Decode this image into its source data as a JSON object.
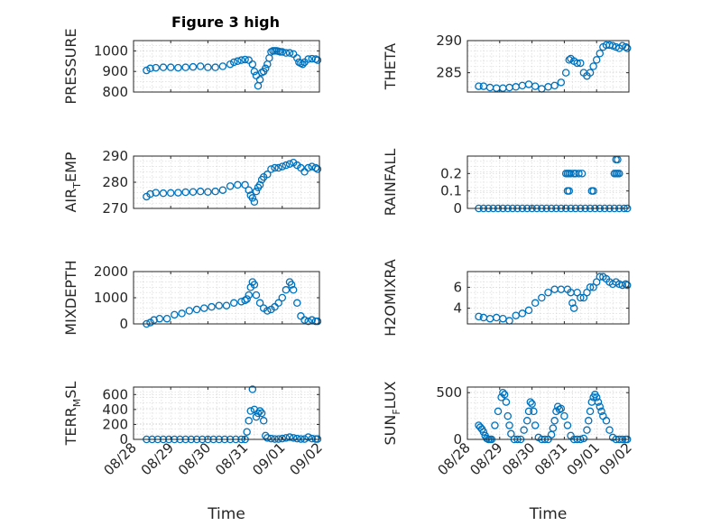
{
  "title": "Figure 3 high",
  "colors": {
    "series": "#0072BD",
    "axis": "#262626",
    "grid": "#d4d4d4"
  },
  "chart_data": [
    {
      "type": "scatter",
      "id": "pressure",
      "ylabel": {
        "main": "PRESSURE",
        "sub": ""
      },
      "ylim": [
        800,
        1050
      ],
      "yticks": [
        800,
        900,
        1000
      ],
      "ytick_labels": [
        "800",
        "900",
        "1000"
      ],
      "xlim": [
        0,
        5
      ],
      "xticks": [
        0,
        1,
        2,
        3,
        4,
        5
      ],
      "x_tick_labels": [
        "08/28",
        "08/29",
        "08/30",
        "08/31",
        "09/01",
        "09/02"
      ],
      "show_xtick_labels": false,
      "grid": true,
      "x": [
        0.35,
        0.45,
        0.6,
        0.8,
        1.0,
        1.2,
        1.4,
        1.6,
        1.8,
        2.0,
        2.2,
        2.4,
        2.6,
        2.7,
        2.8,
        2.9,
        3.0,
        3.1,
        3.2,
        3.25,
        3.3,
        3.35,
        3.4,
        3.45,
        3.5,
        3.55,
        3.6,
        3.65,
        3.7,
        3.75,
        3.8,
        3.85,
        3.9,
        3.95,
        4.0,
        4.1,
        4.2,
        4.3,
        4.4,
        4.45,
        4.5,
        4.55,
        4.6,
        4.7,
        4.8,
        4.9,
        4.95
      ],
      "y": [
        905,
        915,
        918,
        920,
        920,
        918,
        920,
        922,
        925,
        920,
        920,
        925,
        935,
        945,
        950,
        955,
        958,
        955,
        935,
        900,
        880,
        830,
        860,
        895,
        900,
        915,
        935,
        965,
        995,
        1000,
        1000,
        1000,
        998,
        995,
        995,
        990,
        990,
        985,
        965,
        945,
        940,
        935,
        945,
        960,
        962,
        960,
        955
      ]
    },
    {
      "type": "scatter",
      "id": "theta",
      "ylabel": {
        "main": "THETA",
        "sub": ""
      },
      "ylim": [
        282,
        290
      ],
      "yticks": [
        285,
        290
      ],
      "ytick_labels": [
        "285",
        "290"
      ],
      "xlim": [
        0,
        5
      ],
      "xticks": [
        0,
        1,
        2,
        3,
        4,
        5
      ],
      "x_tick_labels": [
        "08/28",
        "08/29",
        "08/30",
        "08/31",
        "09/01",
        "09/02"
      ],
      "show_xtick_labels": false,
      "grid": true,
      "x": [
        0.35,
        0.5,
        0.7,
        0.9,
        1.1,
        1.3,
        1.5,
        1.7,
        1.9,
        2.1,
        2.3,
        2.5,
        2.7,
        2.9,
        3.05,
        3.15,
        3.2,
        3.3,
        3.4,
        3.5,
        3.6,
        3.7,
        3.8,
        3.9,
        4.0,
        4.1,
        4.2,
        4.3,
        4.4,
        4.5,
        4.6,
        4.7,
        4.8,
        4.9,
        4.95
      ],
      "y": [
        282.9,
        282.9,
        282.7,
        282.6,
        282.6,
        282.7,
        282.8,
        283.0,
        283.2,
        282.9,
        282.5,
        282.8,
        283.0,
        283.5,
        285.0,
        287.0,
        287.2,
        286.8,
        286.5,
        286.5,
        285.0,
        284.5,
        285.0,
        286.0,
        287.0,
        288.0,
        289.0,
        289.3,
        289.3,
        289.2,
        289.0,
        288.8,
        289.2,
        289.0,
        288.8
      ]
    },
    {
      "type": "scatter",
      "id": "air_temp",
      "ylabel": {
        "main": "AIR",
        "sub": "T",
        "main2": "EMP"
      },
      "ylim": [
        270,
        290
      ],
      "yticks": [
        270,
        280,
        290
      ],
      "ytick_labels": [
        "270",
        "280",
        "290"
      ],
      "xlim": [
        0,
        5
      ],
      "xticks": [
        0,
        1,
        2,
        3,
        4,
        5
      ],
      "x_tick_labels": [
        "08/28",
        "08/29",
        "08/30",
        "08/31",
        "09/01",
        "09/02"
      ],
      "show_xtick_labels": false,
      "grid": true,
      "x": [
        0.35,
        0.45,
        0.6,
        0.8,
        1.0,
        1.2,
        1.4,
        1.6,
        1.8,
        2.0,
        2.2,
        2.4,
        2.6,
        2.8,
        3.0,
        3.1,
        3.15,
        3.2,
        3.25,
        3.3,
        3.35,
        3.4,
        3.45,
        3.5,
        3.6,
        3.7,
        3.8,
        3.9,
        4.0,
        4.1,
        4.2,
        4.3,
        4.4,
        4.5,
        4.6,
        4.7,
        4.8,
        4.9,
        4.95
      ],
      "y": [
        274.5,
        275.5,
        276.0,
        275.8,
        275.9,
        276.0,
        276.2,
        276.3,
        276.5,
        276.3,
        276.5,
        277.0,
        278.5,
        279.0,
        279.0,
        277.0,
        275.0,
        274.0,
        272.5,
        276.5,
        278.0,
        279.0,
        281.0,
        282.0,
        283.0,
        285.0,
        285.5,
        285.5,
        286.0,
        286.5,
        287.0,
        287.5,
        286.5,
        285.5,
        284.0,
        285.5,
        286.0,
        285.5,
        285.0
      ]
    },
    {
      "type": "scatter",
      "id": "rainfall",
      "ylabel": {
        "main": "RAINFALL",
        "sub": ""
      },
      "ylim": [
        0,
        0.3
      ],
      "yticks": [
        0,
        0.1,
        0.2
      ],
      "ytick_labels": [
        "0",
        "0.1",
        "0.2"
      ],
      "xlim": [
        0,
        5
      ],
      "xticks": [
        0,
        1,
        2,
        3,
        4,
        5
      ],
      "x_tick_labels": [
        "08/28",
        "08/29",
        "08/30",
        "08/31",
        "09/01",
        "09/02"
      ],
      "show_xtick_labels": false,
      "grid": true,
      "x": [
        0.35,
        0.5,
        0.65,
        0.8,
        0.95,
        1.1,
        1.25,
        1.4,
        1.55,
        1.7,
        1.85,
        2.0,
        2.15,
        2.3,
        2.45,
        2.6,
        2.75,
        2.9,
        3.05,
        3.2,
        3.35,
        3.5,
        3.65,
        3.8,
        3.95,
        4.1,
        4.25,
        4.4,
        4.55,
        4.7,
        4.85,
        4.95,
        3.05,
        3.1,
        3.15,
        3.2,
        3.1,
        3.15,
        3.3,
        3.35,
        3.45,
        3.55,
        3.85,
        3.9,
        4.55,
        4.6,
        4.65,
        4.7,
        4.6,
        4.65
      ],
      "y": [
        0,
        0,
        0,
        0,
        0,
        0,
        0,
        0,
        0,
        0,
        0,
        0,
        0,
        0,
        0,
        0,
        0,
        0,
        0,
        0,
        0,
        0,
        0,
        0,
        0,
        0,
        0,
        0,
        0,
        0,
        0,
        0,
        0.2,
        0.2,
        0.2,
        0.2,
        0.1,
        0.1,
        0.2,
        0.2,
        0.2,
        0.2,
        0.1,
        0.1,
        0.2,
        0.2,
        0.2,
        0.2,
        0.28,
        0.28
      ]
    },
    {
      "type": "scatter",
      "id": "mixdepth",
      "ylabel": {
        "main": "MIXDEPTH",
        "sub": ""
      },
      "ylim": [
        0,
        2000
      ],
      "yticks": [
        0,
        1000,
        2000
      ],
      "ytick_labels": [
        "0",
        "1000",
        "2000"
      ],
      "xlim": [
        0,
        5
      ],
      "xticks": [
        0,
        1,
        2,
        3,
        4,
        5
      ],
      "x_tick_labels": [
        "08/28",
        "08/29",
        "08/30",
        "08/31",
        "09/01",
        "09/02"
      ],
      "show_xtick_labels": false,
      "grid": true,
      "x": [
        0.35,
        0.45,
        0.55,
        0.7,
        0.9,
        1.1,
        1.3,
        1.5,
        1.7,
        1.9,
        2.1,
        2.3,
        2.5,
        2.7,
        2.9,
        3.0,
        3.05,
        3.1,
        3.15,
        3.2,
        3.25,
        3.3,
        3.4,
        3.5,
        3.6,
        3.7,
        3.8,
        3.9,
        4.0,
        4.1,
        4.2,
        4.25,
        4.3,
        4.4,
        4.5,
        4.6,
        4.7,
        4.8,
        4.9,
        4.95
      ],
      "y": [
        0,
        50,
        150,
        200,
        200,
        350,
        400,
        500,
        550,
        600,
        650,
        700,
        700,
        800,
        850,
        900,
        950,
        1100,
        1400,
        1600,
        1500,
        1100,
        800,
        600,
        500,
        550,
        650,
        800,
        1000,
        1300,
        1600,
        1500,
        1300,
        800,
        300,
        150,
        100,
        150,
        100,
        100
      ]
    },
    {
      "type": "scatter",
      "id": "h2omixra",
      "ylabel": {
        "main": "H2OMIXRA",
        "sub": ""
      },
      "ylim": [
        2.5,
        7.5
      ],
      "yticks": [
        4,
        6
      ],
      "ytick_labels": [
        "4",
        "6"
      ],
      "xlim": [
        0,
        5
      ],
      "xticks": [
        0,
        1,
        2,
        3,
        4,
        5
      ],
      "x_tick_labels": [
        "08/28",
        "08/29",
        "08/30",
        "08/31",
        "09/01",
        "09/02"
      ],
      "show_xtick_labels": false,
      "grid": true,
      "x": [
        0.35,
        0.5,
        0.7,
        0.9,
        1.1,
        1.3,
        1.5,
        1.7,
        1.9,
        2.1,
        2.3,
        2.5,
        2.7,
        2.9,
        3.1,
        3.2,
        3.25,
        3.3,
        3.4,
        3.5,
        3.6,
        3.7,
        3.8,
        3.9,
        4.0,
        4.1,
        4.2,
        4.3,
        4.4,
        4.5,
        4.6,
        4.7,
        4.8,
        4.9,
        4.95
      ],
      "y": [
        3.2,
        3.1,
        3.0,
        3.1,
        3.0,
        2.8,
        3.3,
        3.5,
        3.8,
        4.5,
        5.0,
        5.5,
        5.8,
        5.8,
        5.8,
        5.5,
        4.5,
        4.0,
        5.5,
        5.0,
        5.0,
        5.5,
        6.0,
        6.0,
        6.5,
        7.0,
        7.0,
        6.8,
        6.5,
        6.3,
        6.5,
        6.3,
        6.2,
        6.3,
        6.2
      ]
    },
    {
      "type": "scatter",
      "id": "terr_msl",
      "ylabel": {
        "main": "TERR",
        "sub": "M",
        "main2": "SL"
      },
      "ylim": [
        0,
        700
      ],
      "yticks": [
        0,
        200,
        400,
        600
      ],
      "ytick_labels": [
        "0",
        "200",
        "400",
        "600"
      ],
      "xlim": [
        0,
        5
      ],
      "xticks": [
        0,
        1,
        2,
        3,
        4,
        5
      ],
      "x_tick_labels": [
        "08/28",
        "08/29",
        "08/30",
        "08/31",
        "09/01",
        "09/02"
      ],
      "show_xtick_labels": true,
      "xlabel": "Time",
      "grid": true,
      "x": [
        0.35,
        0.5,
        0.65,
        0.8,
        0.95,
        1.1,
        1.25,
        1.4,
        1.55,
        1.7,
        1.85,
        2.0,
        2.15,
        2.3,
        2.45,
        2.6,
        2.75,
        2.9,
        3.0,
        3.05,
        3.1,
        3.15,
        3.2,
        3.25,
        3.3,
        3.35,
        3.4,
        3.45,
        3.5,
        3.55,
        3.6,
        3.7,
        3.8,
        3.9,
        4.0,
        4.1,
        4.2,
        4.3,
        4.4,
        4.5,
        4.6,
        4.7,
        4.8,
        4.9,
        4.95
      ],
      "y": [
        0,
        0,
        0,
        0,
        0,
        0,
        0,
        0,
        0,
        0,
        0,
        0,
        0,
        0,
        0,
        0,
        0,
        0,
        0,
        100,
        250,
        380,
        670,
        400,
        300,
        350,
        380,
        350,
        250,
        50,
        20,
        10,
        5,
        5,
        10,
        20,
        30,
        20,
        10,
        5,
        5,
        30,
        10,
        5,
        5
      ]
    },
    {
      "type": "scatter",
      "id": "sun_flux",
      "ylabel": {
        "main": "SUN",
        "sub": "F",
        "main2": "LUX"
      },
      "ylim": [
        0,
        560
      ],
      "yticks": [
        0,
        500
      ],
      "ytick_labels": [
        "0",
        "500"
      ],
      "xlim": [
        0,
        5
      ],
      "xticks": [
        0,
        1,
        2,
        3,
        4,
        5
      ],
      "x_tick_labels": [
        "08/28",
        "08/29",
        "08/30",
        "08/31",
        "09/01",
        "09/02"
      ],
      "show_xtick_labels": true,
      "xlabel": "Time",
      "grid": true,
      "x": [
        0.35,
        0.4,
        0.45,
        0.5,
        0.55,
        0.6,
        0.65,
        0.7,
        0.75,
        0.85,
        0.95,
        1.05,
        1.1,
        1.15,
        1.2,
        1.25,
        1.3,
        1.35,
        1.45,
        1.55,
        1.65,
        1.75,
        1.85,
        1.9,
        1.95,
        2.0,
        2.05,
        2.1,
        2.2,
        2.3,
        2.4,
        2.5,
        2.6,
        2.65,
        2.7,
        2.75,
        2.8,
        2.85,
        2.9,
        3.0,
        3.1,
        3.2,
        3.3,
        3.4,
        3.5,
        3.6,
        3.7,
        3.75,
        3.8,
        3.85,
        3.9,
        3.95,
        4.0,
        4.05,
        4.1,
        4.15,
        4.2,
        4.3,
        4.4,
        4.5,
        4.6,
        4.7,
        4.8,
        4.9,
        4.95
      ],
      "y": [
        150,
        130,
        110,
        80,
        40,
        10,
        0,
        0,
        0,
        150,
        300,
        450,
        500,
        480,
        400,
        250,
        150,
        60,
        0,
        0,
        0,
        100,
        200,
        300,
        400,
        380,
        300,
        150,
        20,
        0,
        0,
        0,
        50,
        120,
        200,
        300,
        350,
        320,
        330,
        250,
        150,
        40,
        0,
        0,
        0,
        10,
        100,
        200,
        300,
        400,
        450,
        480,
        450,
        400,
        350,
        300,
        250,
        200,
        100,
        20,
        0,
        0,
        0,
        0,
        0
      ]
    }
  ]
}
